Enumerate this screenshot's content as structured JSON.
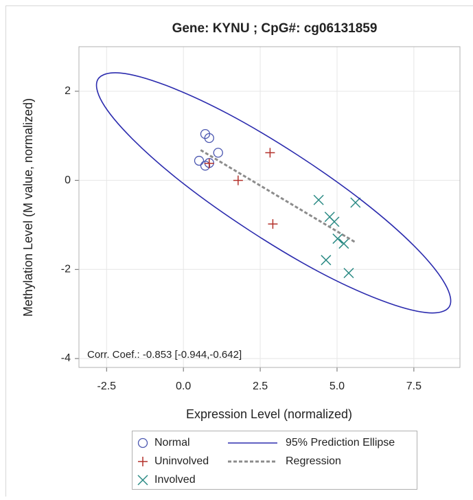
{
  "chart_data": {
    "type": "scatter",
    "title": "Gene: KYNU ; CpG#: cg06131859",
    "x_label": "Expression Level (normalized)",
    "y_label": "Methylation Level (M value, normalized)",
    "annotation": "Corr. Coef.: -0.853 [-0.944,-0.642]",
    "xlim": [
      -3.4,
      9.0
    ],
    "ylim": [
      -4.2,
      3.0
    ],
    "xticks": [
      -2.5,
      {
        "value": 0,
        "label": "0.0"
      },
      2.5,
      {
        "value": 5,
        "label": "5.0"
      },
      7.5
    ],
    "yticks": [
      2,
      0,
      -2,
      -4
    ],
    "grid": true,
    "legend": "bottom",
    "series": [
      {
        "name": "Normal",
        "color": "#4a56b0",
        "marker": "circle",
        "x": [
          0.71,
          0.84,
          1.13,
          0.51,
          0.71,
          0.84
        ],
        "values": [
          1.04,
          0.95,
          0.62,
          0.44,
          0.33,
          0.39
        ]
      },
      {
        "name": "Uninvolved",
        "color": "#b3302a",
        "marker": "plus",
        "x": [
          2.82,
          1.78,
          2.91,
          0.84
        ],
        "values": [
          0.62,
          0.0,
          -0.98,
          0.38
        ]
      },
      {
        "name": "Involved",
        "color": "#2a8a84",
        "marker": "x",
        "x": [
          4.4,
          5.6,
          4.76,
          4.91,
          5.02,
          5.22,
          4.64,
          5.38
        ],
        "values": [
          -0.44,
          -0.5,
          -0.82,
          -0.93,
          -1.31,
          -1.42,
          -1.79,
          -2.08
        ]
      },
      {
        "name": "95% Prediction Ellipse",
        "color": "#2b2bae",
        "marker": "closed-curve",
        "x": [
          8.65,
          7.91,
          6.42,
          4.4,
          2.16,
          0.03,
          -1.66,
          -2.64,
          -2.78,
          -2.05,
          -0.56,
          1.46,
          3.71,
          5.84,
          7.52,
          8.51
        ],
        "values": [
          -2.84,
          -2.97,
          -2.69,
          -2.05,
          -1.13,
          -0.09,
          0.93,
          1.75,
          2.27,
          2.41,
          2.13,
          1.49,
          0.57,
          -0.47,
          -1.48,
          -2.32
        ]
      },
      {
        "name": "Regression",
        "color": "#8c8c8c",
        "marker": "dashed-line",
        "x": [
          0.56,
          5.62
        ],
        "values": [
          0.68,
          -1.4
        ]
      }
    ]
  }
}
